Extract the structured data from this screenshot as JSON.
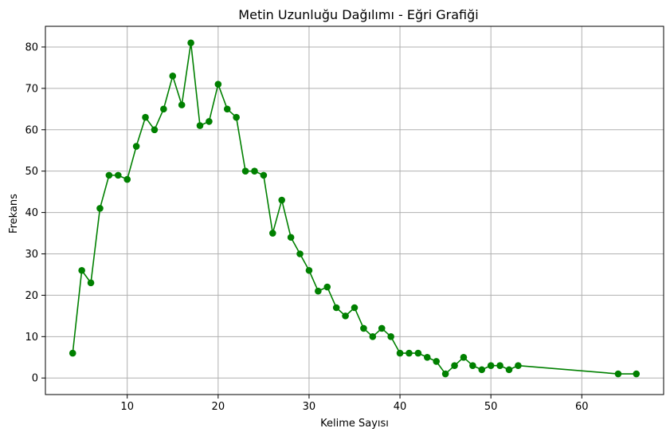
{
  "chart_data": {
    "type": "line",
    "title": "Metin Uzunluğu Dağılımı - Eğri Grafiği",
    "xlabel": "Kelime Sayısı",
    "ylabel": "Frekans",
    "xlim": [
      1,
      69
    ],
    "ylim": [
      -4,
      85
    ],
    "xticks": [
      10,
      20,
      30,
      40,
      50,
      60
    ],
    "yticks": [
      0,
      10,
      20,
      30,
      40,
      50,
      60,
      70,
      80
    ],
    "grid": true,
    "series": [
      {
        "color": "#008000",
        "marker": "circle",
        "x": [
          4,
          5,
          6,
          7,
          8,
          9,
          10,
          11,
          12,
          13,
          14,
          15,
          16,
          17,
          18,
          19,
          20,
          21,
          22,
          23,
          24,
          25,
          26,
          27,
          28,
          29,
          30,
          31,
          32,
          33,
          34,
          35,
          36,
          37,
          38,
          39,
          40,
          41,
          42,
          43,
          44,
          45,
          46,
          47,
          48,
          49,
          50,
          51,
          52,
          53,
          64,
          66
        ],
        "y": [
          6,
          26,
          23,
          41,
          49,
          49,
          48,
          56,
          63,
          60,
          65,
          73,
          66,
          81,
          61,
          62,
          71,
          65,
          63,
          50,
          50,
          49,
          35,
          43,
          34,
          30,
          26,
          21,
          22,
          17,
          15,
          17,
          12,
          10,
          12,
          10,
          6,
          6,
          6,
          5,
          4,
          1,
          3,
          5,
          3,
          2,
          3,
          3,
          2,
          3,
          1,
          1
        ]
      }
    ]
  }
}
